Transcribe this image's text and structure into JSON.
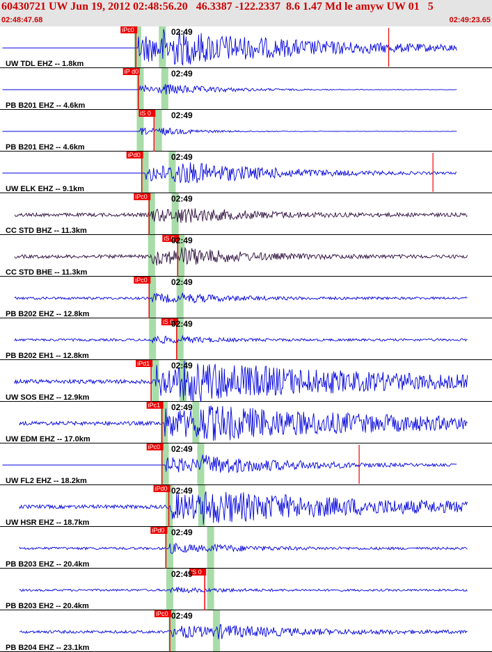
{
  "header": {
    "title": "60430721 UW Jun 19, 2012 02:48:56.20   46.3387 -122.2337  8.6 1.47 Md le amyw UW 01   5",
    "start_time": "02:48:47.68",
    "end_time": "02:49:23.65"
  },
  "tick_label": "02:49",
  "colors": {
    "header_bg": "#e4e4e4",
    "header_text": "#cc0000",
    "trace_blue": "#0000dd",
    "trace_dark": "#2a0a3a",
    "pick_red": "#ee0000",
    "phase_band": "#a8dca8",
    "separator": "#000000"
  },
  "traces": [
    {
      "label": "UW TDL EHZ -- 1.8km",
      "pick": "iPc0",
      "color": "blue",
      "start": 0.6,
      "p": 0.28,
      "s": 0.33,
      "amp": 1.0,
      "decay": 0.25,
      "spike": 0.79,
      "pick_x": 0.245
    },
    {
      "label": "PB B201 EHZ -- 4.6km",
      "pick": "iP d0",
      "color": "blue",
      "start": 0.6,
      "p": 0.285,
      "s": 0.335,
      "amp": 0.45,
      "decay": 0.1,
      "spike": null,
      "pick_x": 0.25
    },
    {
      "label": "PB B201 EH2 -- 4.6km",
      "pick": "iS 0",
      "color": "blue",
      "start": 0.6,
      "p": 0.285,
      "s": 0.322,
      "amp": 0.35,
      "decay": 0.06,
      "spike": null,
      "pick_x": 0.282
    },
    {
      "label": "UW ELK EHZ -- 9.1km",
      "pick": "iPd0",
      "color": "blue",
      "start": 0.6,
      "p": 0.295,
      "s": 0.35,
      "amp": 0.85,
      "decay": 0.2,
      "spike": 0.88,
      "pick_x": 0.257
    },
    {
      "label": "CC STD BHZ -- 11.3km",
      "pick": "iPc0",
      "color": "dark",
      "start": 0.03,
      "p": 0.308,
      "s": 0.356,
      "amp": 0.55,
      "decay": 0.12,
      "spike": null,
      "pick_x": 0.272
    },
    {
      "label": "CC STD BHE -- 11.3km",
      "pick": "iS 0",
      "color": "dark",
      "start": 0.03,
      "p": 0.308,
      "s": 0.368,
      "amp": 0.75,
      "decay": 0.1,
      "spike": null,
      "pick_x": 0.33
    },
    {
      "label": "PB B202 EHZ -- 12.8km",
      "pick": "iPc0",
      "color": "blue",
      "start": 0.03,
      "p": 0.31,
      "s": 0.366,
      "amp": 0.4,
      "decay": 0.08,
      "spike": null,
      "pick_x": 0.272
    },
    {
      "label": "PB B202 EH1 -- 12.8km",
      "pick": "iS 0",
      "color": "blue",
      "start": 0.03,
      "p": 0.31,
      "s": 0.366,
      "amp": 0.35,
      "decay": 0.05,
      "spike": null,
      "pick_x": 0.328
    },
    {
      "label": "UW SOS EHZ -- 12.9km",
      "pick": "iPd1",
      "color": "blue",
      "start": 0.03,
      "p": 0.316,
      "s": 0.372,
      "amp": 1.0,
      "decay": 0.35,
      "spike": null,
      "pick_x": 0.276
    },
    {
      "label": "UW EDM EHZ -- 17.0km",
      "pick": "iPc1",
      "color": "blue",
      "start": 0.04,
      "p": 0.334,
      "s": 0.398,
      "amp": 0.9,
      "decay": 0.35,
      "spike": null,
      "pick_x": 0.298
    },
    {
      "label": "UW FL2 EHZ -- 18.2km",
      "pick": "iPc0",
      "color": "blue",
      "start": 0.6,
      "p": 0.336,
      "s": 0.408,
      "amp": 0.75,
      "decay": 0.2,
      "spike": 0.73,
      "pick_x": 0.298
    },
    {
      "label": "UW HSR EHZ -- 18.7km",
      "pick": "iPd0",
      "color": "blue",
      "start": 0.04,
      "p": 0.344,
      "s": 0.41,
      "amp": 0.85,
      "decay": 0.3,
      "spike": null,
      "pick_x": 0.312
    },
    {
      "label": "PB B203 EHZ -- 20.4km",
      "pick": "iPd0",
      "color": "blue",
      "start": 0.04,
      "p": 0.345,
      "s": 0.428,
      "amp": 0.4,
      "decay": 0.08,
      "spike": null,
      "pick_x": 0.306
    },
    {
      "label": "PB B203 EH2 -- 20.4km",
      "pick": "iS 0",
      "color": "blue",
      "start": 0.04,
      "p": 0.345,
      "s": 0.428,
      "amp": 0.25,
      "decay": 0.05,
      "spike": null,
      "pick_x": 0.385
    },
    {
      "label": "PB B204 EHZ -- 23.1km",
      "pick": "iPc0",
      "color": "blue",
      "start": 0.04,
      "p": 0.35,
      "s": 0.44,
      "amp": 0.55,
      "decay": 0.15,
      "spike": null,
      "pick_x": 0.314
    }
  ]
}
